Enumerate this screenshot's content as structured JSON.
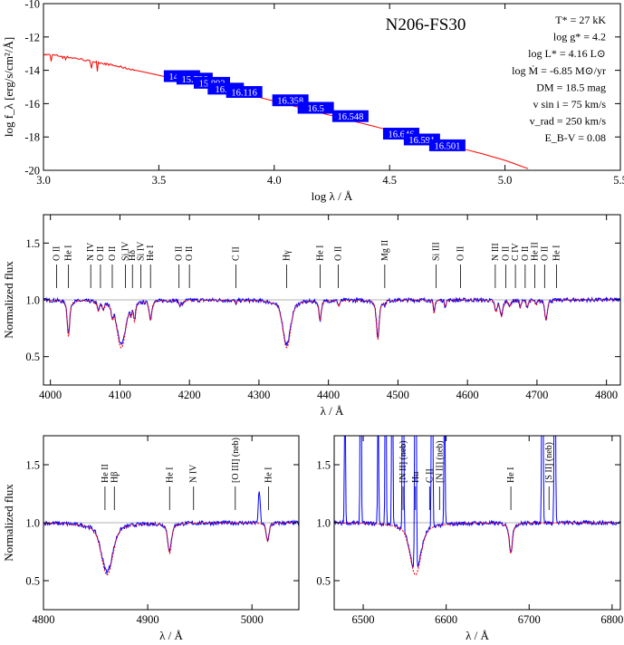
{
  "colors": {
    "model": "#ff0000",
    "observed": "#0000ff",
    "photometry_box": "#0000ff",
    "reference_line": "#999999"
  },
  "chart_data": [
    {
      "type": "line",
      "panel": "sed",
      "title": "N206-FS30",
      "xlabel": "log λ / Å",
      "ylabel": "log f_λ [erg/s/cm²/Å]",
      "xlim": [
        3.0,
        5.5
      ],
      "ylim": [
        -20,
        -10
      ],
      "xticks": [
        3.0,
        3.5,
        4.0,
        4.5,
        5.0,
        5.5
      ],
      "yticks": [
        -20,
        -18,
        -16,
        -14,
        -12,
        -10
      ],
      "parameters": [
        "T* = 27 kK",
        "log g* = 4.2",
        "log L* = 4.16 L⊙",
        "log Ṁ = -6.85 M⊙/yr",
        "DM = 18.5 mag",
        "v sin i = 75 km/s",
        "v_rad = 250 km/s",
        "E_B-V = 0.08"
      ],
      "model_sed": {
        "x": [
          3.0,
          3.05,
          3.1,
          3.15,
          3.2,
          3.25,
          3.3,
          3.35,
          3.4,
          3.5,
          3.6,
          3.7,
          3.8,
          3.9,
          4.0,
          4.1,
          4.2,
          4.3,
          4.4,
          4.5,
          4.6,
          4.7,
          4.8,
          4.9,
          5.0,
          5.1
        ],
        "y": [
          -13.05,
          -13.1,
          -13.2,
          -13.3,
          -13.45,
          -13.55,
          -13.7,
          -13.85,
          -14.0,
          -14.3,
          -14.6,
          -14.9,
          -15.2,
          -15.5,
          -15.85,
          -16.2,
          -16.55,
          -16.9,
          -17.25,
          -17.6,
          -17.95,
          -18.3,
          -18.65,
          -19.0,
          -19.4,
          -19.9
        ]
      },
      "photometry": [
        {
          "label": "14.744",
          "x": 3.6,
          "y": -14.35
        },
        {
          "label": "15.736",
          "x": 3.655,
          "y": -14.5
        },
        {
          "label": "15.892",
          "x": 3.73,
          "y": -14.75
        },
        {
          "label": "16.35",
          "x": 3.79,
          "y": -15.1
        },
        {
          "label": "16.116",
          "x": 3.87,
          "y": -15.3
        },
        {
          "label": "16.358",
          "x": 4.07,
          "y": -15.8
        },
        {
          "label": "16.5",
          "x": 4.18,
          "y": -16.25
        },
        {
          "label": "16.548",
          "x": 4.33,
          "y": -16.75
        },
        {
          "label": "16.646",
          "x": 4.55,
          "y": -17.8
        },
        {
          "label": "16.591",
          "x": 4.64,
          "y": -18.15
        },
        {
          "label": "16.501",
          "x": 4.75,
          "y": -18.5
        }
      ]
    },
    {
      "type": "line",
      "panel": "spectrum-main",
      "xlabel": "λ / Å",
      "ylabel": "Normalized flux",
      "xlim": [
        3990,
        4820
      ],
      "ylim": [
        0.25,
        1.75
      ],
      "xticks": [
        4000,
        4100,
        4200,
        4300,
        4400,
        4500,
        4600,
        4700,
        4800
      ],
      "yticks": [
        0.5,
        1.0,
        1.5
      ],
      "absorption_lines": [
        {
          "center": 4026,
          "depth": 0.32,
          "width": 1.6
        },
        {
          "center": 4069,
          "depth": 0.08,
          "width": 1.5
        },
        {
          "center": 4076,
          "depth": 0.06,
          "width": 1.5
        },
        {
          "center": 4089,
          "depth": 0.1,
          "width": 1.2
        },
        {
          "center": 4102,
          "depth": 0.42,
          "width": 5.5
        },
        {
          "center": 4116,
          "depth": 0.08,
          "width": 1.0
        },
        {
          "center": 4121,
          "depth": 0.15,
          "width": 1.3
        },
        {
          "center": 4144,
          "depth": 0.17,
          "width": 1.6
        },
        {
          "center": 4186,
          "depth": 0.04,
          "width": 1.2
        },
        {
          "center": 4190,
          "depth": 0.04,
          "width": 1.2
        },
        {
          "center": 4267,
          "depth": 0.03,
          "width": 1.2
        },
        {
          "center": 4340,
          "depth": 0.42,
          "width": 5.0
        },
        {
          "center": 4388,
          "depth": 0.18,
          "width": 1.5
        },
        {
          "center": 4415,
          "depth": 0.05,
          "width": 1.2
        },
        {
          "center": 4471,
          "depth": 0.35,
          "width": 1.8
        },
        {
          "center": 4481,
          "depth": 0.04,
          "width": 1.0
        },
        {
          "center": 4552,
          "depth": 0.12,
          "width": 1.0
        },
        {
          "center": 4568,
          "depth": 0.06,
          "width": 1.0
        },
        {
          "center": 4641,
          "depth": 0.1,
          "width": 1.5
        },
        {
          "center": 4649,
          "depth": 0.14,
          "width": 1.8
        },
        {
          "center": 4661,
          "depth": 0.06,
          "width": 1.2
        },
        {
          "center": 4676,
          "depth": 0.06,
          "width": 1.2
        },
        {
          "center": 4686,
          "depth": 0.06,
          "width": 1.3
        },
        {
          "center": 4699,
          "depth": 0.04,
          "width": 1.2
        },
        {
          "center": 4713,
          "depth": 0.18,
          "width": 1.6
        }
      ],
      "line_labels": [
        {
          "text": "O II",
          "x": 4009
        },
        {
          "text": "He I",
          "x": 4026
        },
        {
          "text": "N IV",
          "x": 4058
        },
        {
          "text": "O II",
          "x": 4072
        },
        {
          "text": "O II",
          "x": 4089
        },
        {
          "text": "Si IV",
          "x": 4108
        },
        {
          "text": "Hδ",
          "x": 4118
        },
        {
          "text": "Si IV",
          "x": 4130
        },
        {
          "text": "He I",
          "x": 4144
        },
        {
          "text": "O II",
          "x": 4185
        },
        {
          "text": "O II",
          "x": 4200
        },
        {
          "text": "C II",
          "x": 4267
        },
        {
          "text": "Hγ",
          "x": 4340
        },
        {
          "text": "He I",
          "x": 4388
        },
        {
          "text": "O II",
          "x": 4414
        },
        {
          "text": "Mg II",
          "x": 4481
        },
        {
          "text": "Si III",
          "x": 4555
        },
        {
          "text": "O II",
          "x": 4590
        },
        {
          "text": "N III",
          "x": 4640
        },
        {
          "text": "O II",
          "x": 4655
        },
        {
          "text": "C IV",
          "x": 4669
        },
        {
          "text": "O II",
          "x": 4683
        },
        {
          "text": "He II",
          "x": 4697
        },
        {
          "text": "O II",
          "x": 4711
        },
        {
          "text": "He I",
          "x": 4728
        }
      ]
    },
    {
      "type": "line",
      "panel": "spectrum-hbeta",
      "xlabel": "λ / Å",
      "ylabel": "Normalized flux",
      "xlim": [
        4800,
        5045
      ],
      "ylim": [
        0.25,
        1.75
      ],
      "xticks": [
        4800,
        4900,
        5000
      ],
      "yticks": [
        0.5,
        1.0,
        1.5
      ],
      "absorption_lines": [
        {
          "center": 4861,
          "depth": 0.45,
          "width": 5.0
        },
        {
          "center": 4921,
          "depth": 0.26,
          "width": 1.6
        },
        {
          "center": 5015,
          "depth": 0.16,
          "width": 1.3
        }
      ],
      "emission_lines": [
        {
          "center": 5007,
          "height": 0.1,
          "width": 0.9
        }
      ],
      "line_labels": [
        {
          "text": "He II",
          "x": 4859
        },
        {
          "text": "Hβ",
          "x": 4868
        },
        {
          "text": "He I",
          "x": 4921
        },
        {
          "text": "N IV",
          "x": 4944
        },
        {
          "text": "[O III] (neb)",
          "x": 4984
        },
        {
          "text": "He I",
          "x": 5016
        }
      ]
    },
    {
      "type": "line",
      "panel": "spectrum-halpha",
      "xlabel": "λ / Å",
      "ylabel": "",
      "xlim": [
        6465,
        6810
      ],
      "ylim": [
        0.25,
        1.75
      ],
      "xticks": [
        6500,
        6600,
        6700,
        6800
      ],
      "yticks": [
        0.5,
        1.0,
        1.5
      ],
      "absorption_lines": [
        {
          "center": 6563,
          "depth": 0.45,
          "width": 6.0
        },
        {
          "center": 6678,
          "depth": 0.26,
          "width": 1.8
        }
      ],
      "emission_lines": [
        {
          "center": 6478,
          "height": 0.45,
          "width": 0.6
        },
        {
          "center": 6497,
          "height": 1.0,
          "width": 0.6
        },
        {
          "center": 6518,
          "height": 0.4,
          "width": 0.6
        },
        {
          "center": 6527,
          "height": 0.75,
          "width": 0.6
        },
        {
          "center": 6535,
          "height": 1.0,
          "width": 0.6
        },
        {
          "center": 6548,
          "height": 1.0,
          "width": 0.7
        },
        {
          "center": 6563,
          "height": 1.2,
          "width": 0.8
        },
        {
          "center": 6583,
          "height": 1.0,
          "width": 0.7
        },
        {
          "center": 6598,
          "height": 0.5,
          "width": 0.6
        },
        {
          "center": 6716,
          "height": 1.0,
          "width": 0.7
        },
        {
          "center": 6731,
          "height": 0.8,
          "width": 0.7
        }
      ],
      "line_labels": [
        {
          "text": "[N II] (neb)",
          "x": 6548
        },
        {
          "text": "Hα",
          "x": 6563
        },
        {
          "text": "C II",
          "x": 6580
        },
        {
          "text": "[N II] (neb)",
          "x": 6592
        },
        {
          "text": "He I",
          "x": 6678
        },
        {
          "text": "[S II] (neb)",
          "x": 6724
        }
      ]
    }
  ]
}
